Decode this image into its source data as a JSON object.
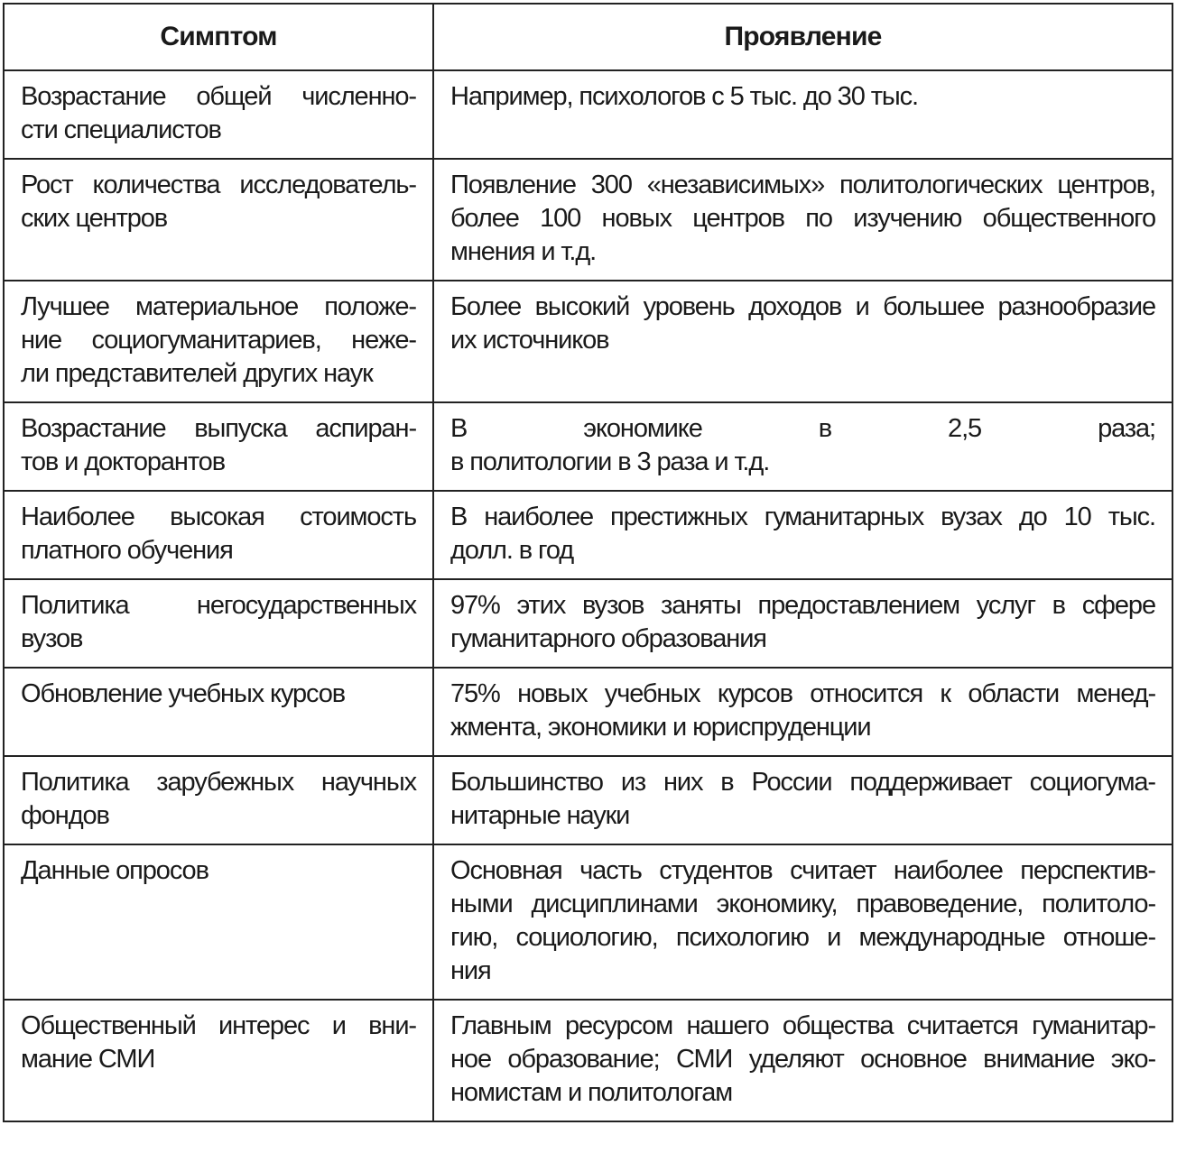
{
  "table": {
    "headers": [
      "Симптом",
      "Проявление"
    ],
    "rows": [
      {
        "symptom": [
          "Возрастание общей численно-",
          "сти специалистов"
        ],
        "manifestation": [
          "Например, психологов с 5 тыс. до 30 тыс."
        ]
      },
      {
        "symptom": [
          "Рост количества исследователь-",
          "ских центров"
        ],
        "manifestation": [
          "Появление 300 «независимых» политологических центров,",
          "более 100 новых центров по изучению общественного",
          "мнения и т.д."
        ]
      },
      {
        "symptom": [
          "Лучшее материальное положе-",
          "ние социогуманитариев, нeже-",
          "ли представителей других наук"
        ],
        "manifestation": [
          "Более высокий уровень доходов и большее разнообразие",
          "их источников"
        ]
      },
      {
        "symptom": [
          "Возрастание выпуска аспиран-",
          "тов и докторантов"
        ],
        "manifestation": [
          "В экономике в 2,5 раза;",
          "в политологии в 3 раза и т.д."
        ]
      },
      {
        "symptom": [
          "Наиболее высокая стоимость",
          "платного обучения"
        ],
        "manifestation": [
          "В наиболее престижных гуманитарных вузах до 10 тыс.",
          "долл. в год"
        ]
      },
      {
        "symptom": [
          "Политика негосударственных",
          "вузов"
        ],
        "manifestation": [
          "97% этих вузов заняты предоставлением услуг в сфере",
          "гуманитарного образования"
        ]
      },
      {
        "symptom": [
          "Обновление учебных курсов"
        ],
        "manifestation": [
          "75% новых учебных курсов относится к области менед-",
          "жмента, экономики и юриспруденции"
        ]
      },
      {
        "symptom": [
          "Политика зарубежных научных",
          "фондов"
        ],
        "manifestation": [
          "Большинство из них в России поддерживает социогума-",
          "нитарные науки"
        ]
      },
      {
        "symptom": [
          "Данные опросов"
        ],
        "manifestation": [
          "Основная часть студентов считает наиболее перспектив-",
          "ными дисциплинами экономику, правоведение, политоло-",
          "гию, социологию, психологию и международные отноше-",
          "ния"
        ]
      },
      {
        "symptom": [
          "Общественный интерес и вни-",
          "мание СМИ"
        ],
        "manifestation": [
          "Главным ресурсом нашего общества считается гуманитар-",
          "ное образование; СМИ уделяют основное внимание эко-",
          "номистам и политологам"
        ]
      }
    ]
  }
}
